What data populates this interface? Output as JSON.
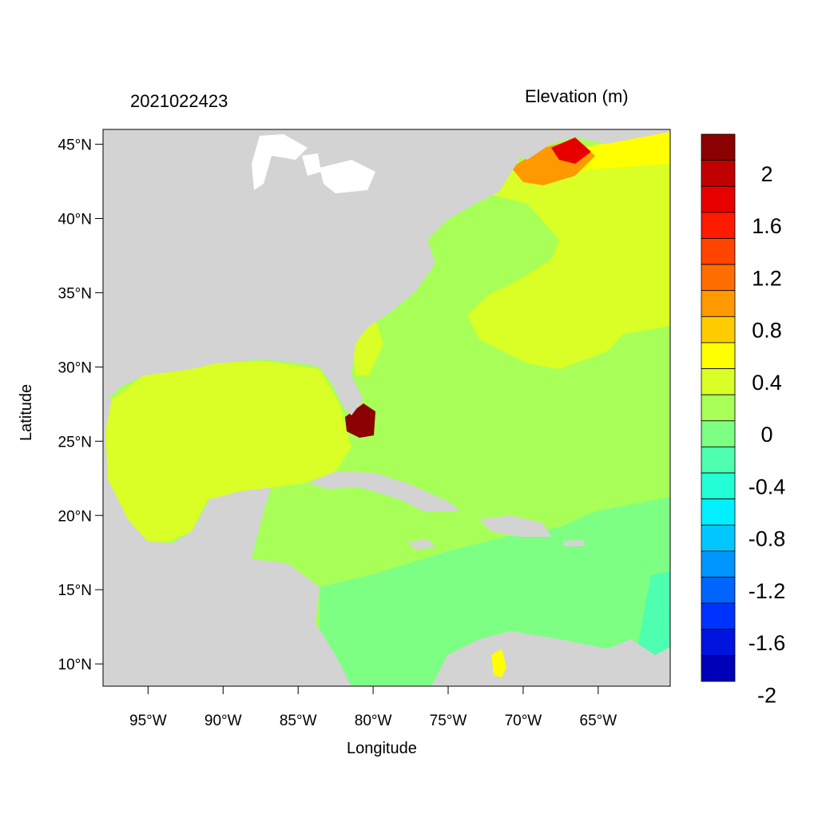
{
  "header": {
    "datetime": "2021022423",
    "variable_title": "Elevation (m)"
  },
  "axes": {
    "xlabel": "Longitude",
    "ylabel": "Latitude",
    "xticks": [
      {
        "value": -95,
        "label": "95°W"
      },
      {
        "value": -90,
        "label": "90°W"
      },
      {
        "value": -85,
        "label": "85°W"
      },
      {
        "value": -80,
        "label": "80°W"
      },
      {
        "value": -75,
        "label": "75°W"
      },
      {
        "value": -70,
        "label": "70°W"
      },
      {
        "value": -65,
        "label": "65°W"
      }
    ],
    "yticks": [
      {
        "value": 10,
        "label": "10°N"
      },
      {
        "value": 15,
        "label": "15°N"
      },
      {
        "value": 20,
        "label": "20°N"
      },
      {
        "value": 25,
        "label": "25°N"
      },
      {
        "value": 30,
        "label": "30°N"
      },
      {
        "value": 35,
        "label": "35°N"
      },
      {
        "value": 40,
        "label": "40°N"
      },
      {
        "value": 45,
        "label": "45°N"
      }
    ],
    "xlim": [
      -98,
      -60.2
    ],
    "ylim": [
      8.5,
      46
    ]
  },
  "colors": {
    "land": "#d3d3d3",
    "lakes": "#ffffff"
  },
  "colorbar": {
    "levels": [
      {
        "color": "#8b0000"
      },
      {
        "color": "#c00000"
      },
      {
        "color": "#e80000"
      },
      {
        "color": "#ff1a00"
      },
      {
        "color": "#ff4400"
      },
      {
        "color": "#ff6e00"
      },
      {
        "color": "#ff9900"
      },
      {
        "color": "#ffcc00"
      },
      {
        "color": "#ffff00"
      },
      {
        "color": "#d9ff26"
      },
      {
        "color": "#a8ff58"
      },
      {
        "color": "#7dff83"
      },
      {
        "color": "#4dffae"
      },
      {
        "color": "#22ffd6"
      },
      {
        "color": "#00f0ff"
      },
      {
        "color": "#00c8ff"
      },
      {
        "color": "#0096ff"
      },
      {
        "color": "#0064ff"
      },
      {
        "color": "#0032ff"
      },
      {
        "color": "#0014e0"
      },
      {
        "color": "#0000b8"
      }
    ],
    "labels": [
      {
        "text": "2",
        "value": 2.0
      },
      {
        "text": "1.6",
        "value": 1.6
      },
      {
        "text": "1.2",
        "value": 1.2
      },
      {
        "text": "0.8",
        "value": 0.8
      },
      {
        "text": "0.4",
        "value": 0.4
      },
      {
        "text": "0",
        "value": 0.0
      },
      {
        "text": "-0.4",
        "value": -0.4
      },
      {
        "text": "-0.8",
        "value": -0.8
      },
      {
        "text": "-1.2",
        "value": -1.2
      },
      {
        "text": "-1.6",
        "value": -1.6
      },
      {
        "text": "-2",
        "value": -2.0
      }
    ]
  }
}
